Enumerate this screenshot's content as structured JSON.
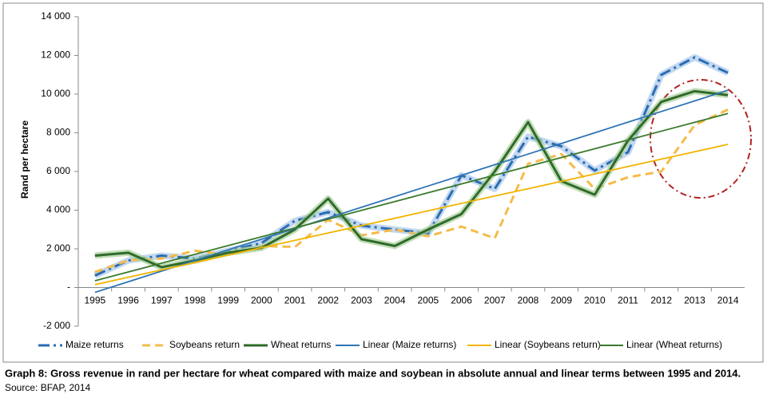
{
  "chart_data": {
    "type": "line",
    "y_label": "Rand per hectare",
    "caption": "Graph 8: Gross revenue in rand per hectare for wheat compared with maize and soybean in absolute annual and linear terms between 1995 and 2014.",
    "source": "Source: BFAP, 2014",
    "categories": [
      "1995",
      "1996",
      "1997",
      "1998",
      "1999",
      "2000",
      "2001",
      "2002",
      "2003",
      "2004",
      "2005",
      "2006",
      "2007",
      "2008",
      "2009",
      "2010",
      "2011",
      "2012",
      "2013",
      "2014"
    ],
    "ylim": [
      -2000,
      14000
    ],
    "yticks": [
      {
        "value": -2000,
        "label": "-2 000"
      },
      {
        "value": 0,
        "label": "-"
      },
      {
        "value": 2000,
        "label": "2 000"
      },
      {
        "value": 4000,
        "label": "4 000"
      },
      {
        "value": 6000,
        "label": "6 000"
      },
      {
        "value": 8000,
        "label": "8 000"
      },
      {
        "value": 10000,
        "label": "10 000"
      },
      {
        "value": 12000,
        "label": "12 000"
      },
      {
        "value": 14000,
        "label": "14 000"
      }
    ],
    "series": [
      {
        "name": "Maize returns",
        "color": "#2a6db3",
        "dash": "dashdot",
        "glow": "#a9c8ea",
        "values": [
          620,
          1400,
          1650,
          1500,
          1900,
          2300,
          3450,
          3900,
          3200,
          3000,
          2800,
          5800,
          5100,
          7800,
          7300,
          6050,
          7000,
          11000,
          11900,
          11100
        ]
      },
      {
        "name": "Soybeans return",
        "color": "#f6bb4a",
        "dash": "dashed",
        "values": [
          800,
          1400,
          1500,
          1900,
          1700,
          2150,
          2100,
          3500,
          2700,
          3000,
          2650,
          3150,
          2550,
          6400,
          6900,
          5100,
          5700,
          6000,
          8400,
          9200
        ]
      },
      {
        "name": "Wheat returns",
        "color": "#2f6b2a",
        "dash": "solid",
        "glow": "#a8cf98",
        "values": [
          1650,
          1800,
          1050,
          1400,
          1800,
          2050,
          3000,
          4600,
          2500,
          2150,
          3000,
          3800,
          6000,
          8550,
          5500,
          4800,
          7600,
          9600,
          10150,
          9950
        ]
      },
      {
        "name": "Linear (Maize returns)",
        "color": "#2f75b5",
        "dash": "solid",
        "values": [
          -250,
          300,
          850,
          1400,
          1950,
          2500,
          3050,
          3600,
          4150,
          4700,
          5250,
          5800,
          6350,
          6900,
          7450,
          8000,
          8550,
          9100,
          9650,
          10200
        ]
      },
      {
        "name": "Linear (Soybeans return)",
        "color": "#f2b400",
        "dash": "solid",
        "values": [
          150,
          530,
          910,
          1290,
          1680,
          2060,
          2440,
          2820,
          3200,
          3580,
          3970,
          4350,
          4730,
          5110,
          5490,
          5870,
          6260,
          6640,
          7020,
          7400
        ]
      },
      {
        "name": "Linear (Wheat returns)",
        "color": "#3a7a2c",
        "dash": "solid",
        "values": [
          350,
          805,
          1260,
          1715,
          2170,
          2625,
          3080,
          3535,
          3990,
          4445,
          4900,
          5355,
          5810,
          6265,
          6720,
          7175,
          7630,
          8085,
          8540,
          9000
        ]
      }
    ]
  }
}
